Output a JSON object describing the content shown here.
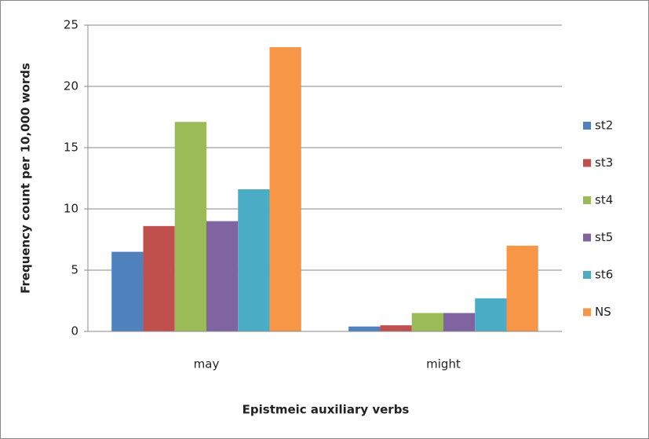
{
  "chart_data": {
    "type": "bar",
    "x_label": "Epistmeic auxiliary verbs",
    "y_label": "Frequency count per 10,000 words",
    "categories": [
      "may",
      "might"
    ],
    "series": [
      {
        "name": "st2",
        "color": "#4f81bd",
        "values": [
          6.5,
          0.4
        ]
      },
      {
        "name": "st3",
        "color": "#c0504d",
        "values": [
          8.6,
          0.5
        ]
      },
      {
        "name": "st4",
        "color": "#9bbb59",
        "values": [
          17.1,
          1.5
        ]
      },
      {
        "name": "st5",
        "color": "#8064a2",
        "values": [
          9.0,
          1.5
        ]
      },
      {
        "name": "st6",
        "color": "#4bacc6",
        "values": [
          11.6,
          2.7
        ]
      },
      {
        "name": "NS",
        "color": "#f79646",
        "values": [
          23.2,
          7.0
        ]
      }
    ],
    "ylim": [
      0,
      25
    ],
    "yticks": [
      0,
      5,
      10,
      15,
      20,
      25
    ],
    "grid": true,
    "legend": "right"
  }
}
